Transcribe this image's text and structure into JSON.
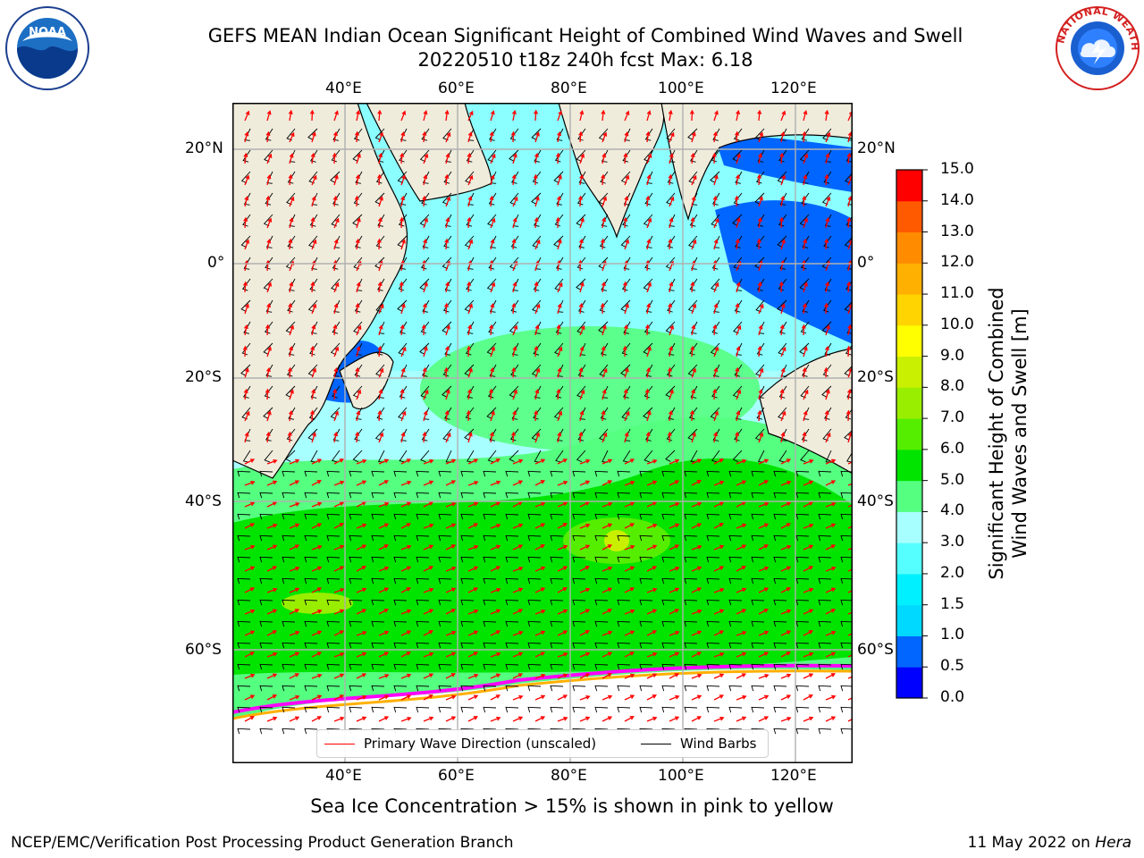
{
  "title": {
    "line1": "GEFS MEAN Indian Ocean Significant Height of Combined Wind Waves and Swell",
    "line2": "20220510 t18z 240h fcst   Max: 6.18"
  },
  "logos": {
    "noaa_text": "NOAA",
    "nws_text": "NATIONAL WEATHER SERVICE"
  },
  "map": {
    "lon_ticks": [
      "40°E",
      "60°E",
      "80°E",
      "100°E",
      "120°E"
    ],
    "lat_ticks": [
      "20°N",
      "0°",
      "20°S",
      "40°S",
      "60°S"
    ],
    "land_color": "#efecdc",
    "ice_color": "#ffffff",
    "grid_color": "#b0b0b0",
    "wave_arrow_color": "#ff0000",
    "wind_barb_color": "#000000"
  },
  "legend": {
    "wave": "Primary Wave Direction (unscaled)",
    "wind": "Wind Barbs"
  },
  "colorbar": {
    "label_line1": "Significant Height of Combined",
    "label_line2": "Wind Waves and Swell [m]",
    "ticks": [
      "0.0",
      "0.5",
      "1.0",
      "1.5",
      "2.0",
      "3.0",
      "4.0",
      "5.0",
      "6.0",
      "7.0",
      "8.0",
      "9.0",
      "10.0",
      "11.0",
      "12.0",
      "13.0",
      "14.0",
      "15.0"
    ],
    "colors": [
      "#0000ff",
      "#0066ff",
      "#00d9ff",
      "#00f0ff",
      "#55ffff",
      "#a8ffff",
      "#55ff80",
      "#00e400",
      "#55ee00",
      "#99ee00",
      "#c8f000",
      "#ffff00",
      "#ffd400",
      "#ffb000",
      "#ff8c00",
      "#ff5a00",
      "#ff0000"
    ]
  },
  "caption": "Sea Ice Concentration > 15% is shown in pink to yellow",
  "footer": {
    "left": "NCEP/EMC/Verification Post Processing Product Generation Branch",
    "right_date": "11 May 2022 on",
    "right_machine": "Hera"
  }
}
